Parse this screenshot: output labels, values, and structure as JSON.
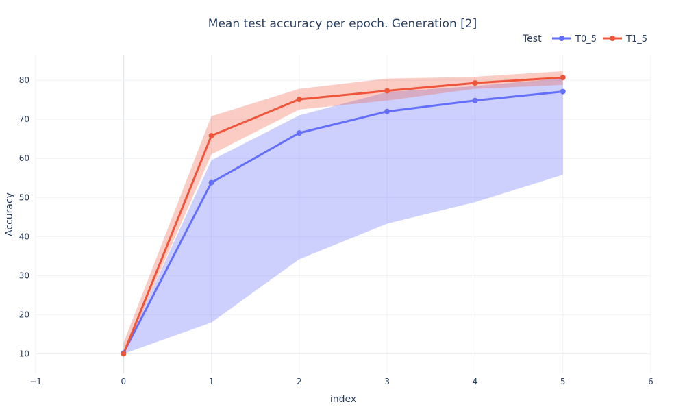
{
  "chart_data": {
    "type": "line",
    "title": "Mean test accuracy per epoch. Generation [2]",
    "xlabel": "index",
    "ylabel": "Accuracy",
    "xlim": [
      -1,
      6
    ],
    "ylim": [
      5,
      86.5
    ],
    "x_ticks": [
      -1,
      0,
      1,
      2,
      3,
      4,
      5,
      6
    ],
    "y_ticks": [
      10,
      20,
      30,
      40,
      50,
      60,
      70,
      80
    ],
    "grid": true,
    "legend": {
      "title": "Test",
      "placement": "top-right"
    },
    "x": [
      0,
      1,
      2,
      3,
      4,
      5
    ],
    "series": [
      {
        "name": "T0_5",
        "color": "#636efa",
        "band_color": "rgba(99,110,250,0.32)",
        "values": [
          10.2,
          53.8,
          66.5,
          72.0,
          74.8,
          77.1
        ],
        "lower": [
          10.0,
          18.0,
          34.2,
          43.3,
          48.8,
          55.8
        ],
        "upper": [
          10.4,
          59.5,
          71.0,
          77.0,
          78.5,
          80.5
        ]
      },
      {
        "name": "T1_5",
        "color": "#ef553b",
        "band_color": "rgba(239,85,59,0.30)",
        "values": [
          10.0,
          65.8,
          75.1,
          77.3,
          79.3,
          80.7
        ],
        "lower": [
          9.8,
          61.0,
          72.5,
          74.8,
          77.8,
          78.8
        ],
        "upper": [
          12.8,
          70.8,
          77.8,
          80.4,
          80.9,
          82.3
        ]
      }
    ]
  }
}
